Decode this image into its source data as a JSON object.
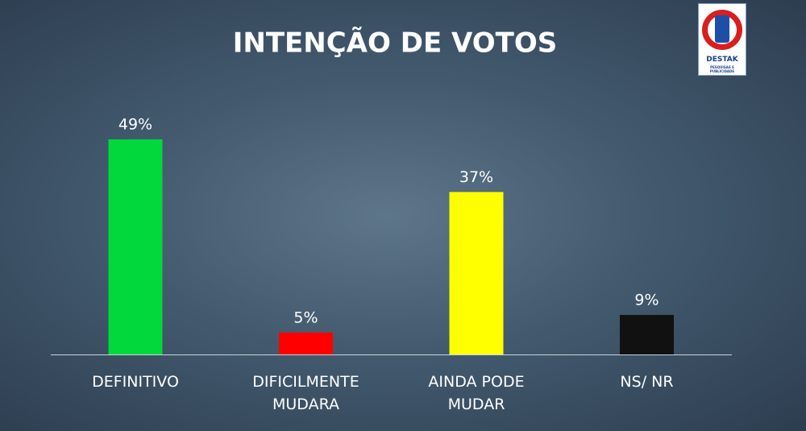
{
  "chart_data": {
    "type": "bar",
    "title": "INTENÇÃO DE VOTOS",
    "categories": [
      "DEFINITIVO",
      "DIFICILMENTE MUDARA",
      "AINDA PODE MUDAR",
      "NS/ NR"
    ],
    "values": [
      49,
      5,
      37,
      9
    ],
    "value_labels": [
      "49%",
      "5%",
      "37%",
      "9%"
    ],
    "colors": [
      "#00d83c",
      "#ff0000",
      "#ffff00",
      "#111111"
    ]
  },
  "logo": {
    "name": "DESTAK",
    "tagline": "PESQUISAS E PUBLICIDADE"
  }
}
